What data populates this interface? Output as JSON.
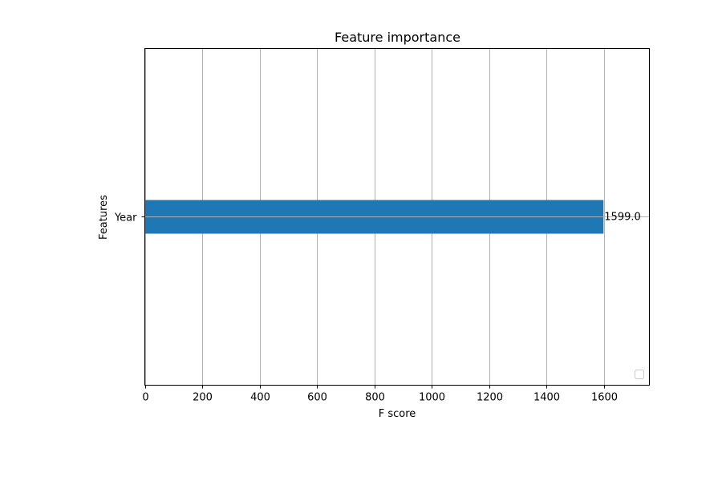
{
  "chart_data": {
    "type": "bar",
    "orientation": "horizontal",
    "title": "Feature importance",
    "xlabel": "F score",
    "ylabel": "Features",
    "categories": [
      "Year"
    ],
    "values": [
      1599.0
    ],
    "data_labels": [
      "1599.0"
    ],
    "xlim": [
      0,
      1759
    ],
    "xticks": [
      0,
      200,
      400,
      600,
      800,
      1000,
      1200,
      1400,
      1600
    ],
    "grid": true,
    "legend": {
      "visible": true,
      "entries": [],
      "placement": "lower right"
    },
    "colors": {
      "bar": "#1f77b4",
      "grid": "#b0b0b0",
      "axes": "#000000"
    }
  }
}
